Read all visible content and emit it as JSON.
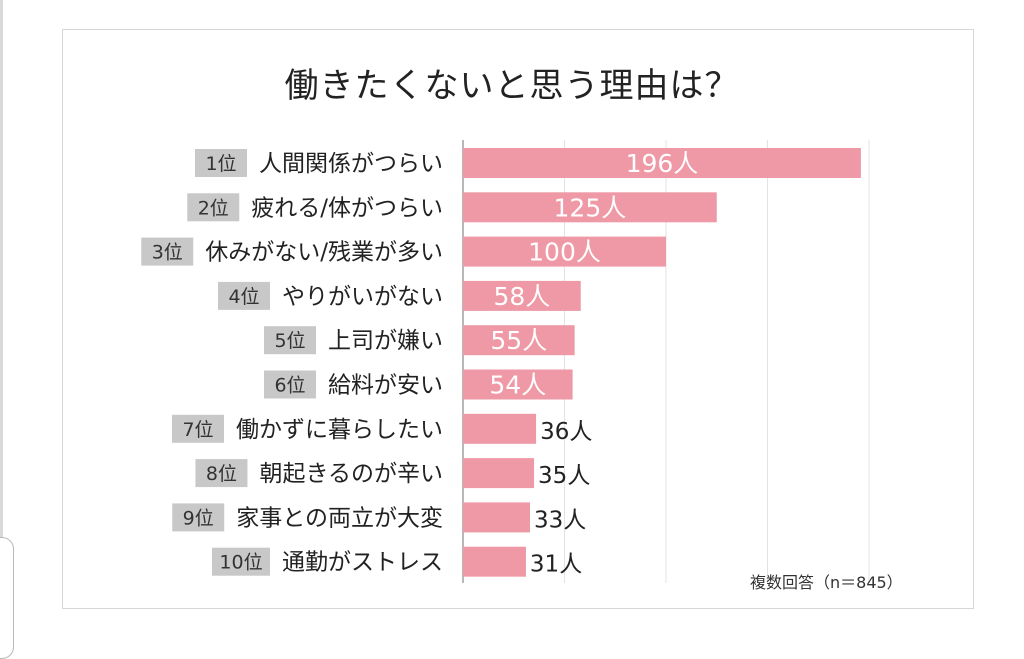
{
  "chart_data": {
    "type": "bar",
    "orientation": "horizontal",
    "title": "働きたくないと思う理由は？",
    "note": "複数回答（n＝845）",
    "unit": "人",
    "xlim": [
      0,
      200
    ],
    "grid": true,
    "bar_color": "#ee99a5",
    "rank_badge_color": "#c8c8c8",
    "categories": [
      {
        "rank": "1位",
        "label": "人間関係がつらい",
        "value": 196,
        "value_label": "196人"
      },
      {
        "rank": "2位",
        "label": "疲れる/体がつらい",
        "value": 125,
        "value_label": "125人"
      },
      {
        "rank": "3位",
        "label": "休みがない/残業が多い",
        "value": 100,
        "value_label": "100人"
      },
      {
        "rank": "4位",
        "label": "やりがいがない",
        "value": 58,
        "value_label": "58人"
      },
      {
        "rank": "5位",
        "label": "上司が嫌い",
        "value": 55,
        "value_label": "55人"
      },
      {
        "rank": "6位",
        "label": "給料が安い",
        "value": 54,
        "value_label": "54人"
      },
      {
        "rank": "7位",
        "label": "働かずに暮らしたい",
        "value": 36,
        "value_label": "36人"
      },
      {
        "rank": "8位",
        "label": "朝起きるのが辛い",
        "value": 35,
        "value_label": "35人"
      },
      {
        "rank": "9位",
        "label": "家事との両立が大変",
        "value": 33,
        "value_label": "33人"
      },
      {
        "rank": "10位",
        "label": "通勤がストレス",
        "value": 31,
        "value_label": "31人"
      }
    ]
  }
}
